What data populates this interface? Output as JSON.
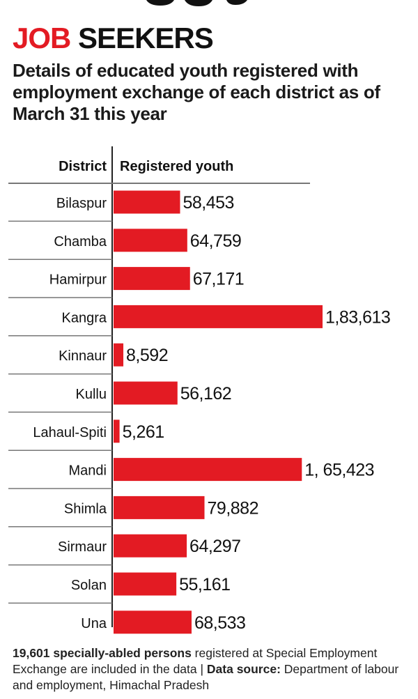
{
  "header": {
    "title_red": "JOB",
    "title_black": "SEEKERS",
    "subtitle": "Details of educated youth registered with employment exchange of each district as of March 31 this year"
  },
  "chart_data": {
    "type": "bar",
    "orientation": "horizontal",
    "title": "",
    "xlabel": "Registered youth",
    "ylabel": "District",
    "categories": [
      "Bilaspur",
      "Chamba",
      "Hamirpur",
      "Kangra",
      "Kinnaur",
      "Kullu",
      "Lahaul-Spiti",
      "Mandi",
      "Shimla",
      "Sirmaur",
      "Solan",
      "Una"
    ],
    "values": [
      58453,
      64759,
      67171,
      183613,
      8592,
      56162,
      5261,
      165423,
      79882,
      64297,
      55161,
      68533
    ],
    "data_labels": [
      "58,453",
      "64,759",
      "67,171",
      "1,83,613",
      "8,592",
      "56,162",
      "5,261",
      "1, 65,423",
      "79,882",
      "64,297",
      "55,161",
      "68,533"
    ],
    "bar_color": "#e31b23",
    "grid": false,
    "legend": "none"
  },
  "footnote": {
    "bold1": "19,601 specially-abled persons",
    "text1": " registered at Special Employment Exchange are included in the data | ",
    "bold2": "Data source:",
    "text2": " Department of labour and employment, Himachal Pradesh"
  },
  "colors": {
    "accent": "#e31b23",
    "text": "#111111"
  }
}
